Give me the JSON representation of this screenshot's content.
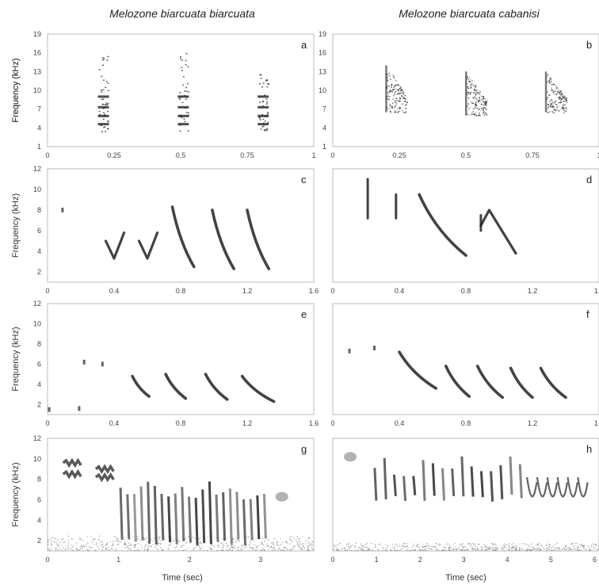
{
  "titles": {
    "left": "Melozone biarcuata biarcuata",
    "right": "Melozone biarcuata cabanisi"
  },
  "labels": {
    "ylabel": "Frequency (kHz)",
    "xlabel": "Time (sec)"
  },
  "colors": {
    "ink": "#222222",
    "frame": "#bbbbbb",
    "noise": "#6b6b6b"
  },
  "chart_data": [
    {
      "id": "a",
      "type": "heatmap",
      "letter": "a",
      "xlim": [
        0,
        1
      ],
      "ylim": [
        1,
        19
      ],
      "xticks": [
        "0",
        "0.25",
        "0.5",
        "0.75",
        "1"
      ],
      "yticks": [
        "1",
        "4",
        "7",
        "10",
        "13",
        "16",
        "19"
      ],
      "notes": [
        {
          "kind": "vbar",
          "t": 0.21,
          "f0": 3.5,
          "f1": 16.5
        },
        {
          "kind": "vbar",
          "t": 0.51,
          "f0": 3.5,
          "f1": 16.5
        },
        {
          "kind": "vbar",
          "t": 0.81,
          "f0": 3.5,
          "f1": 13.0
        }
      ]
    },
    {
      "id": "b",
      "type": "heatmap",
      "letter": "b",
      "xlim": [
        0,
        1
      ],
      "ylim": [
        1,
        19
      ],
      "xticks": [
        "0",
        "0.25",
        "0.5",
        "0.75",
        "1"
      ],
      "yticks": [
        "1",
        "4",
        "7",
        "10",
        "13",
        "16",
        "19"
      ],
      "notes": [
        {
          "kind": "fan",
          "t": 0.2,
          "f0": 6.5,
          "f1": 14.0
        },
        {
          "kind": "fan",
          "t": 0.5,
          "f0": 6.0,
          "f1": 13.0
        },
        {
          "kind": "fan",
          "t": 0.8,
          "f0": 6.5,
          "f1": 13.0
        }
      ]
    },
    {
      "id": "c",
      "type": "heatmap",
      "letter": "c",
      "xlim": [
        0,
        1.6
      ],
      "ylim": [
        1,
        12
      ],
      "xticks": [
        "0",
        "0.4",
        "0.8",
        "1.2",
        "1.6"
      ],
      "yticks": [
        "2",
        "4",
        "6",
        "8",
        "10",
        "12"
      ],
      "notes": [
        {
          "kind": "dot",
          "t": 0.09,
          "f": 8.0
        },
        {
          "kind": "check",
          "t0": 0.35,
          "tm": 0.4,
          "t1": 0.46,
          "fs": 5.0,
          "fm": 3.3,
          "fe": 5.8
        },
        {
          "kind": "check",
          "t0": 0.55,
          "tm": 0.6,
          "t1": 0.66,
          "fs": 5.0,
          "fm": 3.3,
          "fe": 5.8
        },
        {
          "kind": "sweep",
          "t0": 0.75,
          "t1": 0.88,
          "f0": 8.3,
          "f1": 2.5
        },
        {
          "kind": "sweep",
          "t0": 0.99,
          "t1": 1.12,
          "f0": 8.0,
          "f1": 2.3
        },
        {
          "kind": "sweep",
          "t0": 1.2,
          "t1": 1.33,
          "f0": 8.0,
          "f1": 2.3
        }
      ]
    },
    {
      "id": "d",
      "type": "heatmap",
      "letter": "d",
      "xlim": [
        0,
        1.6
      ],
      "ylim": [
        1,
        12
      ],
      "xticks": [
        "0",
        "0.4",
        "0.8",
        "1.2",
        "1.6"
      ],
      "yticks": [],
      "notes": [
        {
          "kind": "vline",
          "t": 0.21,
          "f0": 7.2,
          "f1": 11.0
        },
        {
          "kind": "vline",
          "t": 0.38,
          "f0": 7.2,
          "f1": 9.5
        },
        {
          "kind": "sweep",
          "t0": 0.52,
          "t1": 0.8,
          "f0": 9.5,
          "f1": 3.6
        },
        {
          "kind": "vline",
          "t": 0.89,
          "f0": 6.0,
          "f1": 7.5
        },
        {
          "kind": "peak",
          "t0": 0.89,
          "tm": 0.94,
          "t1": 1.1,
          "fs": 6.5,
          "fm": 8.0,
          "fe": 3.8
        }
      ]
    },
    {
      "id": "e",
      "type": "heatmap",
      "letter": "e",
      "xlim": [
        0,
        1.6
      ],
      "ylim": [
        1,
        12
      ],
      "xticks": [
        "0",
        "0.4",
        "0.8",
        "1.2",
        "1.6"
      ],
      "yticks": [
        "2",
        "4",
        "6",
        "8",
        "10",
        "12"
      ],
      "notes": [
        {
          "kind": "dot",
          "t": 0.01,
          "f": 1.5
        },
        {
          "kind": "dot",
          "t": 0.22,
          "f": 6.2
        },
        {
          "kind": "dot",
          "t": 0.19,
          "f": 1.6
        },
        {
          "kind": "dot",
          "t": 0.33,
          "f": 6.0
        },
        {
          "kind": "sweep",
          "t0": 0.51,
          "t1": 0.61,
          "f0": 4.8,
          "f1": 2.8
        },
        {
          "kind": "sweep",
          "t0": 0.71,
          "t1": 0.83,
          "f0": 5.0,
          "f1": 2.6
        },
        {
          "kind": "sweep",
          "t0": 0.95,
          "t1": 1.08,
          "f0": 5.0,
          "f1": 2.5
        },
        {
          "kind": "sweep",
          "t0": 1.17,
          "t1": 1.36,
          "f0": 4.8,
          "f1": 2.3
        }
      ]
    },
    {
      "id": "f",
      "type": "heatmap",
      "letter": "f",
      "xlim": [
        0,
        1.6
      ],
      "ylim": [
        1,
        12
      ],
      "xticks": [
        "0",
        "0.4",
        "0.8",
        "1.2",
        "1.6"
      ],
      "yticks": [],
      "notes": [
        {
          "kind": "dot",
          "t": 0.1,
          "f": 7.3
        },
        {
          "kind": "dot",
          "t": 0.25,
          "f": 7.6
        },
        {
          "kind": "sweep",
          "t0": 0.4,
          "t1": 0.62,
          "f0": 7.2,
          "f1": 3.6
        },
        {
          "kind": "sweep",
          "t0": 0.68,
          "t1": 0.82,
          "f0": 5.8,
          "f1": 2.8
        },
        {
          "kind": "sweep",
          "t0": 0.87,
          "t1": 1.02,
          "f0": 5.8,
          "f1": 2.7
        },
        {
          "kind": "sweep",
          "t0": 1.07,
          "t1": 1.2,
          "f0": 5.6,
          "f1": 2.7
        },
        {
          "kind": "sweep",
          "t0": 1.25,
          "t1": 1.4,
          "f0": 5.6,
          "f1": 2.7
        }
      ]
    },
    {
      "id": "g",
      "type": "heatmap",
      "letter": "g",
      "xlim": [
        0,
        3.75
      ],
      "ylim": [
        1,
        12
      ],
      "xticks": [
        "0",
        "1",
        "2",
        "3"
      ],
      "yticks": [
        "2",
        "4",
        "6",
        "8",
        "10",
        "12"
      ],
      "noise_floor": 2.5,
      "notes": [
        {
          "kind": "wave",
          "t0": 0.22,
          "t1": 0.47,
          "f": 9.6
        },
        {
          "kind": "wave",
          "t0": 0.22,
          "t1": 0.47,
          "f": 8.5
        },
        {
          "kind": "wave",
          "t0": 0.68,
          "t1": 0.93,
          "f": 9.0
        },
        {
          "kind": "wave",
          "t0": 0.68,
          "t1": 0.93,
          "f": 8.2
        },
        {
          "kind": "trill",
          "t0": 0.98,
          "t1": 3.1,
          "f0": 1.5,
          "f1": 8.0,
          "n": 22
        },
        {
          "kind": "blob",
          "t": 3.3,
          "f": 6.3
        }
      ]
    },
    {
      "id": "h",
      "type": "heatmap",
      "letter": "h",
      "xlim": [
        0,
        6.1
      ],
      "ylim": [
        1,
        12
      ],
      "xticks": [
        "0",
        "1",
        "2",
        "3",
        "4",
        "5",
        "6"
      ],
      "yticks": [],
      "noise_floor": 1.8,
      "notes": [
        {
          "kind": "blob",
          "t": 0.4,
          "f": 10.2
        },
        {
          "kind": "trill",
          "t0": 0.85,
          "t1": 4.4,
          "f0": 5.8,
          "f1": 10.3,
          "n": 16
        },
        {
          "kind": "peaks",
          "t0": 4.45,
          "t1": 5.85,
          "f0": 5.0,
          "f1": 8.2,
          "n": 6
        }
      ]
    }
  ]
}
